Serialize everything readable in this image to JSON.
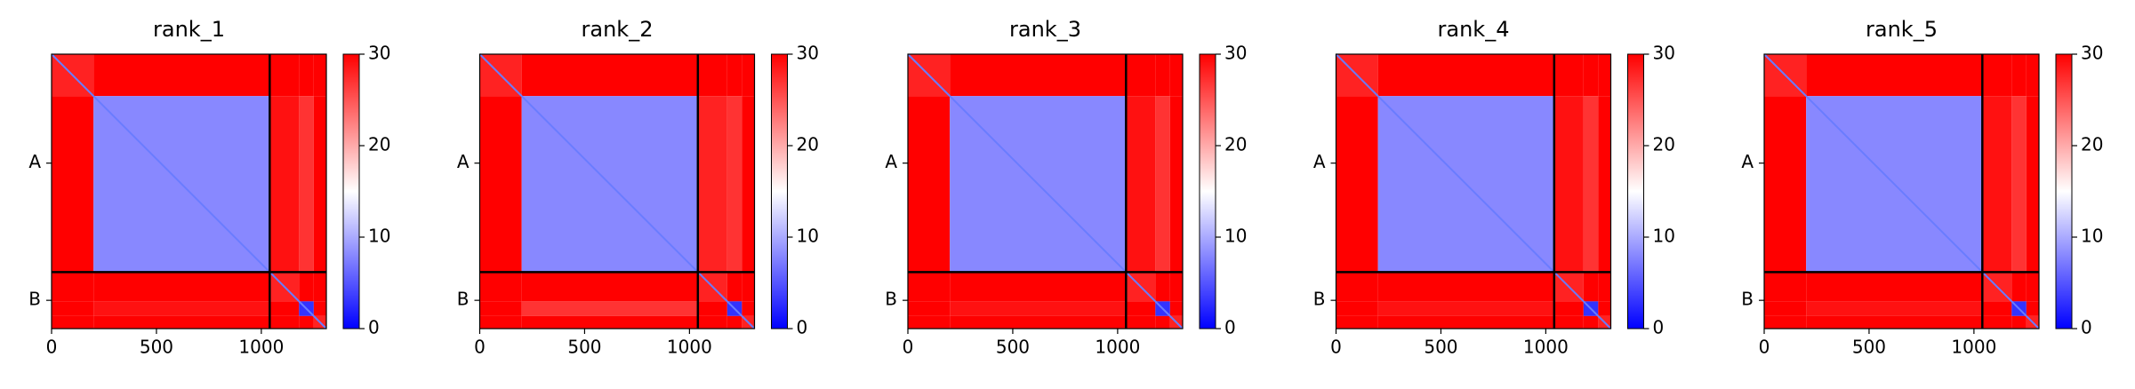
{
  "chart_data": [
    {
      "type": "heatmap",
      "title": "rank_1",
      "bins": [
        0,
        200,
        1040,
        1180,
        1250,
        1310
      ],
      "values": [
        [
          28,
          30,
          30,
          30,
          30
        ],
        [
          30,
          8,
          29,
          27,
          30
        ],
        [
          30,
          30,
          28,
          30,
          30
        ],
        [
          30,
          29,
          30,
          3,
          30
        ],
        [
          30,
          30,
          30,
          30,
          28
        ]
      ],
      "xlim": [
        0,
        1310
      ],
      "xticks": [
        0,
        500,
        1000
      ],
      "ylim": [
        1310,
        0
      ],
      "yticks": [
        {
          "value": 520,
          "label": "A"
        },
        {
          "value": 1175,
          "label": "B"
        }
      ],
      "chain_breaks": [
        1040
      ],
      "colormap": "bwr",
      "clim": [
        0,
        30
      ],
      "cticks": [
        0,
        10,
        20,
        30
      ]
    },
    {
      "type": "heatmap",
      "title": "rank_2",
      "bins": [
        0,
        200,
        1040,
        1180,
        1250,
        1310
      ],
      "values": [
        [
          28,
          30,
          30,
          30,
          30
        ],
        [
          30,
          8,
          28,
          27,
          30
        ],
        [
          30,
          30,
          28,
          30,
          30
        ],
        [
          30,
          27,
          30,
          3,
          30
        ],
        [
          30,
          30,
          30,
          30,
          28
        ]
      ],
      "xlim": [
        0,
        1310
      ],
      "xticks": [
        0,
        500,
        1000
      ],
      "ylim": [
        1310,
        0
      ],
      "yticks": [
        {
          "value": 520,
          "label": "A"
        },
        {
          "value": 1175,
          "label": "B"
        }
      ],
      "chain_breaks": [
        1040
      ],
      "colormap": "bwr",
      "clim": [
        0,
        30
      ],
      "cticks": [
        0,
        10,
        20,
        30
      ]
    },
    {
      "type": "heatmap",
      "title": "rank_3",
      "bins": [
        0,
        200,
        1040,
        1180,
        1250,
        1310
      ],
      "values": [
        [
          28,
          30,
          30,
          30,
          30
        ],
        [
          30,
          8,
          29,
          27,
          30
        ],
        [
          30,
          30,
          28,
          30,
          30
        ],
        [
          30,
          29,
          30,
          3,
          30
        ],
        [
          30,
          30,
          30,
          30,
          28
        ]
      ],
      "xlim": [
        0,
        1310
      ],
      "xticks": [
        0,
        500,
        1000
      ],
      "ylim": [
        1310,
        0
      ],
      "yticks": [
        {
          "value": 520,
          "label": "A"
        },
        {
          "value": 1175,
          "label": "B"
        }
      ],
      "chain_breaks": [
        1040
      ],
      "colormap": "bwr",
      "clim": [
        0,
        30
      ],
      "cticks": [
        0,
        10,
        20,
        30
      ]
    },
    {
      "type": "heatmap",
      "title": "rank_4",
      "bins": [
        0,
        200,
        1040,
        1180,
        1250,
        1310
      ],
      "values": [
        [
          28,
          30,
          30,
          30,
          30
        ],
        [
          30,
          8,
          29,
          27,
          30
        ],
        [
          30,
          30,
          28,
          30,
          30
        ],
        [
          30,
          29,
          30,
          3,
          30
        ],
        [
          30,
          30,
          30,
          30,
          28
        ]
      ],
      "xlim": [
        0,
        1310
      ],
      "xticks": [
        0,
        500,
        1000
      ],
      "ylim": [
        1310,
        0
      ],
      "yticks": [
        {
          "value": 520,
          "label": "A"
        },
        {
          "value": 1175,
          "label": "B"
        }
      ],
      "chain_breaks": [
        1040
      ],
      "colormap": "bwr",
      "clim": [
        0,
        30
      ],
      "cticks": [
        0,
        10,
        20,
        30
      ]
    },
    {
      "type": "heatmap",
      "title": "rank_5",
      "bins": [
        0,
        200,
        1040,
        1180,
        1250,
        1310
      ],
      "values": [
        [
          28,
          30,
          30,
          30,
          30
        ],
        [
          30,
          8,
          29,
          27,
          30
        ],
        [
          30,
          30,
          28,
          30,
          30
        ],
        [
          30,
          29,
          30,
          3,
          30
        ],
        [
          30,
          30,
          30,
          30,
          28
        ]
      ],
      "xlim": [
        0,
        1310
      ],
      "xticks": [
        0,
        500,
        1000
      ],
      "ylim": [
        1310,
        0
      ],
      "yticks": [
        {
          "value": 520,
          "label": "A"
        },
        {
          "value": 1175,
          "label": "B"
        }
      ],
      "chain_breaks": [
        1040
      ],
      "colormap": "bwr",
      "clim": [
        0,
        30
      ],
      "cticks": [
        0,
        10,
        20,
        30
      ]
    }
  ]
}
